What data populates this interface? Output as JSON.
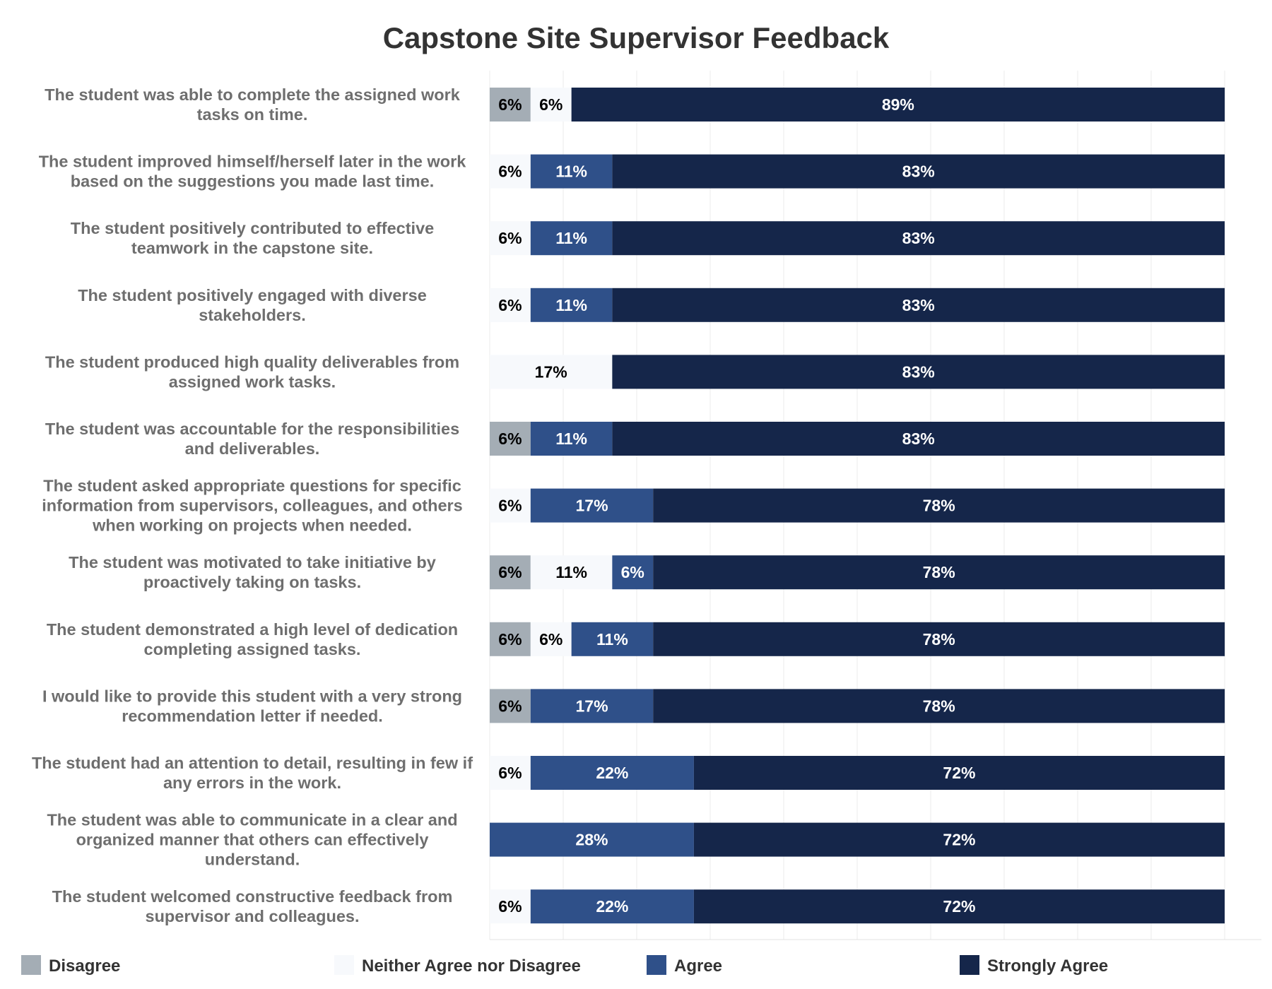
{
  "chart_data": {
    "type": "bar",
    "orientation": "horizontal",
    "stacked": true,
    "title": "Capstone Site Supervisor Feedback",
    "xlim": [
      0,
      100
    ],
    "grid": true,
    "legend_position": "bottom",
    "categories": [
      "The student was able to complete the assigned work tasks on time.",
      "The student improved himself/herself later in the work based on the suggestions you made last time.",
      "The student positively contributed to effective teamwork in the capstone site.",
      "The student positively engaged with diverse stakeholders.",
      "The student produced high quality deliverables from assigned work tasks.",
      "The student was accountable for the responsibilities and deliverables.",
      "The student asked appropriate questions for specific information from supervisors, colleagues, and others when working on projects when needed.",
      "The student was motivated to take initiative by proactively taking on tasks.",
      "The student demonstrated a high level of dedication completing assigned tasks.",
      "I would like to provide this student with a very strong recommendation letter if needed.",
      "The student had an attention to detail, resulting in few if any errors in the work.",
      "The student was able to communicate in a clear and organized manner that others can effectively understand.",
      "The student welcomed constructive feedback from supervisor and colleagues."
    ],
    "category_lines": [
      [
        "The student was able to complete the assigned work",
        "tasks on time."
      ],
      [
        "The student improved himself/herself later in the work",
        "based on the suggestions you made last time."
      ],
      [
        "The student positively contributed to effective",
        "teamwork in the capstone site."
      ],
      [
        "The student positively engaged with diverse",
        "stakeholders."
      ],
      [
        "The student produced high quality deliverables from",
        "assigned work tasks."
      ],
      [
        "The student was accountable for the responsibilities",
        "and deliverables."
      ],
      [
        "The student asked appropriate questions for specific",
        "information from supervisors, colleagues, and others",
        "when working on projects when needed."
      ],
      [
        "The student was motivated to take initiative by",
        "proactively taking on tasks."
      ],
      [
        "The student demonstrated a high level of dedication",
        "completing assigned tasks."
      ],
      [
        "I would like to provide this student with a very strong",
        "recommendation letter if needed."
      ],
      [
        "The student had an attention to detail, resulting in few if",
        "any errors in the work."
      ],
      [
        "The student was able to communicate in a clear and",
        "organized manner that others can effectively",
        "understand."
      ],
      [
        "The student welcomed constructive feedback from",
        "supervisor and colleagues."
      ]
    ],
    "series": [
      {
        "name": "Disagree",
        "color": "#a4adb5",
        "label_color": "#000000",
        "values": [
          5.56,
          0,
          0,
          0,
          0,
          5.56,
          0,
          5.56,
          5.56,
          5.56,
          0,
          0,
          0
        ],
        "labels": [
          "6%",
          "",
          "",
          "",
          "",
          "6%",
          "",
          "6%",
          "6%",
          "6%",
          "",
          "",
          ""
        ]
      },
      {
        "name": "Neither Agree nor Disagree",
        "color": "#f7f9fc",
        "label_color": "#000000",
        "values": [
          5.56,
          5.56,
          5.56,
          5.56,
          16.67,
          0,
          5.56,
          11.11,
          5.56,
          0,
          5.56,
          0,
          5.56
        ],
        "labels": [
          "6%",
          "6%",
          "6%",
          "6%",
          "17%",
          "",
          "6%",
          "11%",
          "6%",
          "",
          "6%",
          "",
          "6%"
        ]
      },
      {
        "name": "Agree",
        "color": "#2f5089",
        "label_color": "#ffffff",
        "values": [
          0,
          11.11,
          11.11,
          11.11,
          0,
          11.11,
          16.67,
          5.56,
          11.11,
          16.67,
          22.22,
          27.78,
          22.22
        ],
        "labels": [
          "",
          "11%",
          "11%",
          "11%",
          "",
          "11%",
          "17%",
          "6%",
          "11%",
          "17%",
          "22%",
          "28%",
          "22%"
        ]
      },
      {
        "name": "Strongly Agree",
        "color": "#15264a",
        "label_color": "#ffffff",
        "values": [
          88.89,
          83.33,
          83.33,
          83.33,
          83.33,
          83.33,
          77.78,
          77.78,
          77.78,
          77.78,
          72.22,
          72.22,
          72.22
        ],
        "labels": [
          "89%",
          "83%",
          "83%",
          "83%",
          "83%",
          "83%",
          "78%",
          "78%",
          "78%",
          "78%",
          "72%",
          "72%",
          "72%"
        ]
      }
    ]
  }
}
